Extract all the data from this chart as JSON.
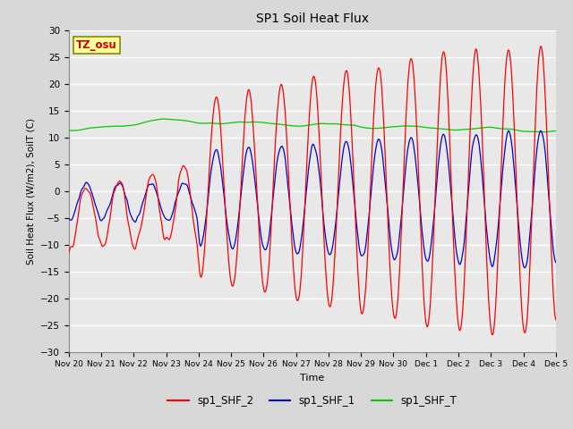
{
  "title": "SP1 Soil Heat Flux",
  "xlabel": "Time",
  "ylabel": "Soil Heat Flux (W/m2), SoilT (C)",
  "ylim": [
    -30,
    30
  ],
  "bg_color": "#d8d8d8",
  "plot_bg_color": "#e8e8e8",
  "grid_color": "#ffffff",
  "line_colors": {
    "sp1_SHF_2": "#ff0000",
    "sp1_SHF_1": "#0000cc",
    "sp1_SHF_T": "#00cc00"
  },
  "tz_label": "TZ_osu",
  "tz_bg": "#ffff99",
  "tz_border": "#999900",
  "tz_text_color": "#cc0000",
  "legend_labels": [
    "sp1_SHF_2",
    "sp1_SHF_1",
    "sp1_SHF_T"
  ],
  "x_tick_labels": [
    "Nov 20",
    "Nov 21",
    "Nov 22",
    "Nov 23",
    "Nov 24",
    "Nov 25",
    "Nov 26",
    "Nov 27",
    "Nov 28",
    "Nov 29",
    "Nov 30",
    "Dec 1",
    "Dec 2",
    "Dec 3",
    "Dec 4",
    "Dec 5"
  ],
  "yticks": [
    -30,
    -25,
    -20,
    -15,
    -10,
    -5,
    0,
    5,
    10,
    15,
    20,
    25,
    30
  ]
}
